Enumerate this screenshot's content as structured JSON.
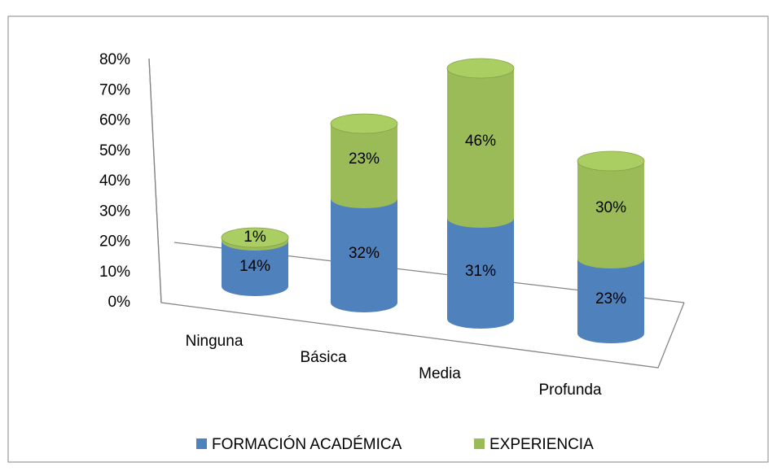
{
  "chart_data": {
    "type": "bar3d_stacked",
    "categories": [
      "Ninguna",
      "Básica",
      "Media",
      "Profunda"
    ],
    "series": [
      {
        "name": "FORMACIÓN ACADÉMICA",
        "color": "#4f81bd",
        "values": [
          14,
          32,
          31,
          23
        ],
        "value_labels": [
          "14%",
          "32%",
          "31%",
          "23%"
        ]
      },
      {
        "name": "EXPERIENCIA",
        "color": "#9bbb59",
        "values": [
          1,
          23,
          46,
          30
        ],
        "value_labels": [
          "1%",
          "23%",
          "46%",
          "30%"
        ]
      }
    ],
    "ylim": [
      0,
      80
    ],
    "yticks": [
      {
        "value": 0,
        "label": "0%"
      },
      {
        "value": 10,
        "label": "10%"
      },
      {
        "value": 20,
        "label": "20%"
      },
      {
        "value": 30,
        "label": "30%"
      },
      {
        "value": 40,
        "label": "40%"
      },
      {
        "value": 50,
        "label": "50%"
      },
      {
        "value": 60,
        "label": "60%"
      },
      {
        "value": 70,
        "label": "70%"
      },
      {
        "value": 80,
        "label": "80%"
      }
    ],
    "legend": "bottom"
  }
}
